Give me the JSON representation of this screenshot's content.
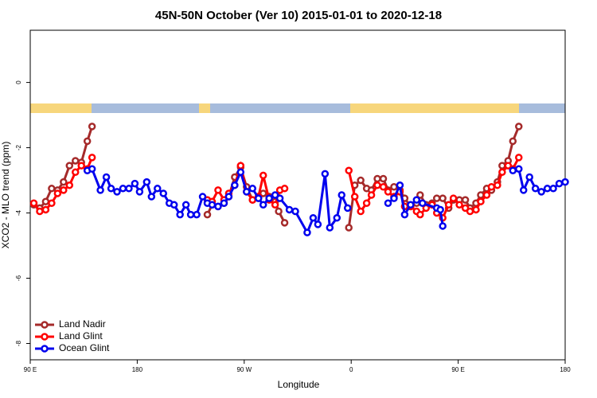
{
  "chart_data": {
    "type": "line",
    "title": "45N-50N October (Ver 10)   2015-01-01 to 2020-12-18",
    "x_label": "Longitude",
    "y_label": "XCO2 - MLO trend (ppm)",
    "xlim": [
      90,
      540
    ],
    "xticks": [
      {
        "value": 90,
        "label": "90 E"
      },
      180,
      {
        "value": 270,
        "label": "90 W"
      },
      {
        "value": 360,
        "label": "0"
      },
      {
        "value": 450,
        "label": "90 E"
      },
      {
        "value": 540,
        "label": "180"
      }
    ],
    "ylim": [
      -8.5,
      1.6
    ],
    "yticks": [
      0,
      -2,
      -4,
      -6,
      -8
    ],
    "legend": "bottom-left",
    "series": [
      {
        "name": "Land Nadir",
        "color": "#a52a2a",
        "x": [
          93,
          98,
          103,
          108,
          113,
          118,
          123,
          128,
          133,
          138,
          142,
          null,
          239,
          243,
          248,
          253,
          257,
          262,
          267,
          272,
          277,
          282,
          286,
          291,
          296,
          299,
          304,
          null,
          358,
          363,
          368,
          373,
          377,
          382,
          387,
          391,
          396,
          401,
          405,
          410,
          415,
          418,
          423,
          428,
          432,
          437,
          442,
          446,
          451,
          456,
          460,
          465,
          469,
          474,
          478,
          483,
          487,
          492,
          496,
          501
        ],
        "values": [
          -3.75,
          -3.85,
          -3.65,
          -3.25,
          -3.3,
          -3.05,
          -2.55,
          -2.4,
          -2.45,
          -1.8,
          -1.35,
          null,
          -4.05,
          -3.75,
          -3.8,
          -3.7,
          -3.5,
          -2.9,
          -2.6,
          -3.2,
          -3.6,
          -3.55,
          -3.4,
          -3.5,
          -3.65,
          -3.95,
          -4.3,
          null,
          -4.45,
          -3.15,
          -3.0,
          -3.25,
          -3.3,
          -2.95,
          -2.95,
          -3.3,
          -3.2,
          -3.3,
          -3.55,
          -3.8,
          -3.7,
          -3.45,
          -3.75,
          -3.7,
          -3.55,
          -3.55,
          -3.85,
          -3.6,
          -3.6,
          -3.6,
          -3.85,
          -3.7,
          -3.45,
          -3.25,
          -3.3,
          -3.05,
          -2.55,
          -2.4,
          -1.8,
          -1.35
        ]
      },
      {
        "name": "Land Glint",
        "color": "#ff0000",
        "x": [
          93,
          98,
          103,
          108,
          113,
          118,
          123,
          128,
          133,
          138,
          142,
          null,
          239,
          243,
          248,
          253,
          257,
          262,
          267,
          272,
          277,
          282,
          286,
          291,
          296,
          300,
          304,
          null,
          358,
          363,
          368,
          373,
          377,
          382,
          387,
          391,
          396,
          401,
          405,
          410,
          415,
          418,
          423,
          428,
          432,
          437,
          442,
          446,
          451,
          456,
          460,
          465,
          469,
          474,
          478,
          483,
          487,
          492,
          496,
          501
        ],
        "values": [
          -3.7,
          -3.95,
          -3.9,
          -3.7,
          -3.4,
          -3.3,
          -3.15,
          -2.75,
          -2.55,
          -2.65,
          -2.3,
          null,
          -3.6,
          -3.65,
          -3.3,
          -3.6,
          -3.4,
          -3.15,
          -2.55,
          -3.35,
          -3.6,
          -3.5,
          -2.85,
          -3.6,
          -3.75,
          -3.3,
          -3.25,
          null,
          -2.7,
          -3.5,
          -3.95,
          -3.7,
          -3.45,
          -3.15,
          -3.2,
          -3.35,
          -3.5,
          -3.35,
          -3.8,
          -3.8,
          -3.95,
          -4.05,
          -3.85,
          -3.75,
          -4.0,
          -4.15,
          -3.75,
          -3.55,
          -3.75,
          -3.85,
          -3.95,
          -3.9,
          -3.65,
          -3.45,
          -3.2,
          -3.15,
          -2.75,
          -2.55,
          -2.65,
          -2.3
        ]
      },
      {
        "name": "Ocean Glint",
        "color": "#0000ee",
        "x": [
          138,
          142,
          149,
          154,
          158,
          163,
          168,
          173,
          178,
          182,
          188,
          192,
          197,
          202,
          207,
          211,
          216,
          221,
          225,
          230,
          235,
          239,
          243,
          248,
          253,
          257,
          262,
          267,
          272,
          277,
          282,
          286,
          291,
          296,
          300,
          308,
          313,
          323,
          328,
          332,
          338,
          342,
          348,
          352,
          357,
          null,
          391,
          396,
          401,
          405,
          410,
          415,
          420,
          432,
          435,
          437,
          null,
          496,
          501,
          505,
          510,
          515,
          520,
          525,
          530,
          535,
          540
        ],
        "values": [
          -2.7,
          -2.65,
          -3.3,
          -2.9,
          -3.25,
          -3.35,
          -3.25,
          -3.25,
          -3.1,
          -3.35,
          -3.05,
          -3.5,
          -3.25,
          -3.4,
          -3.7,
          -3.75,
          -4.05,
          -3.75,
          -4.05,
          -4.05,
          -3.5,
          -3.7,
          -3.75,
          -3.8,
          -3.7,
          -3.5,
          -3.15,
          -2.75,
          -3.35,
          -3.25,
          -3.55,
          -3.75,
          -3.55,
          -3.45,
          -3.55,
          -3.9,
          -3.95,
          -4.6,
          -4.15,
          -4.35,
          -2.8,
          -4.45,
          -4.15,
          -3.45,
          -3.85,
          null,
          -3.7,
          -3.55,
          -3.15,
          -4.05,
          -3.75,
          -3.6,
          -3.7,
          -3.85,
          -3.9,
          -4.4,
          null,
          -2.7,
          -2.65,
          -3.3,
          -2.9,
          -3.25,
          -3.35,
          -3.25,
          -3.25,
          -3.1,
          -3.05
        ]
      }
    ]
  }
}
